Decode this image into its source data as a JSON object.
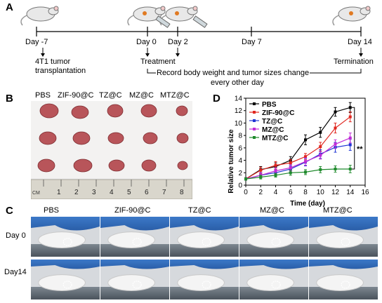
{
  "panels": {
    "a": "A",
    "b": "B",
    "c": "C",
    "d": "D"
  },
  "timeline": {
    "days": [
      "Day -7",
      "Day 0",
      "Day 2",
      "Day 7",
      "Day 14"
    ],
    "event_tumor": [
      "4T1 tumor",
      "transplantation"
    ],
    "event_treatment": "Treatment",
    "event_termination": "Termination",
    "record": [
      "Record body weight and tumor sizes change",
      "every other day"
    ]
  },
  "photo_b": {
    "groups": [
      "PBS",
      "ZIF-90@C",
      "TZ@C",
      "MZ@C",
      "MTZ@C"
    ],
    "ruler_unit": "CM",
    "ruler_numbers": [
      "1",
      "2",
      "3",
      "4",
      "5",
      "6",
      "7",
      "8"
    ]
  },
  "panel_c": {
    "groups": [
      "PBS",
      "ZIF-90@C",
      "TZ@C",
      "MZ@C",
      "MTZ@C"
    ],
    "rows": [
      "Day 0",
      "Day14"
    ]
  },
  "colors": {
    "PBS": "#000000",
    "ZIF-90@C": "#e0261f",
    "TZ@C": "#1f35d4",
    "MZ@C": "#c22bd6",
    "MTZ@C": "#1f8a2c"
  },
  "chart_data": {
    "type": "line",
    "xlabel": "Time (day)",
    "ylabel": "Relative tumor size",
    "xlim": [
      0,
      16
    ],
    "ylim": [
      0,
      14
    ],
    "xticks": [
      0,
      2,
      4,
      6,
      8,
      10,
      12,
      14,
      16
    ],
    "yticks": [
      0,
      2,
      4,
      6,
      8,
      10,
      12,
      14
    ],
    "x": [
      0,
      2,
      4,
      6,
      8,
      10,
      12,
      14
    ],
    "series": [
      {
        "name": "PBS",
        "values": [
          1.0,
          2.5,
          3.0,
          4.0,
          7.3,
          8.5,
          11.8,
          12.5
        ],
        "err": [
          0.2,
          0.5,
          0.6,
          0.6,
          0.8,
          0.8,
          0.7,
          0.8
        ]
      },
      {
        "name": "ZIF-90@C",
        "values": [
          1.0,
          2.4,
          3.2,
          3.6,
          4.6,
          6.2,
          9.2,
          11.0
        ],
        "err": [
          0.2,
          0.5,
          0.6,
          0.5,
          0.5,
          0.7,
          0.8,
          0.8
        ]
      },
      {
        "name": "TZ@C",
        "values": [
          1.0,
          1.6,
          2.0,
          2.6,
          3.7,
          5.0,
          6.1,
          6.5
        ],
        "err": [
          0.2,
          0.4,
          0.5,
          0.5,
          0.6,
          0.7,
          0.8,
          0.9
        ]
      },
      {
        "name": "MZ@C",
        "values": [
          1.0,
          1.6,
          2.3,
          2.8,
          3.8,
          4.8,
          6.6,
          7.6
        ],
        "err": [
          0.2,
          0.4,
          0.5,
          0.5,
          0.6,
          0.6,
          0.7,
          0.8
        ]
      },
      {
        "name": "MTZ@C",
        "values": [
          1.0,
          1.3,
          1.6,
          2.0,
          2.1,
          2.5,
          2.6,
          2.6
        ],
        "err": [
          0.2,
          0.3,
          0.3,
          0.4,
          0.4,
          0.5,
          0.5,
          0.6
        ]
      }
    ],
    "annotation": "**",
    "legend": "top-left"
  }
}
